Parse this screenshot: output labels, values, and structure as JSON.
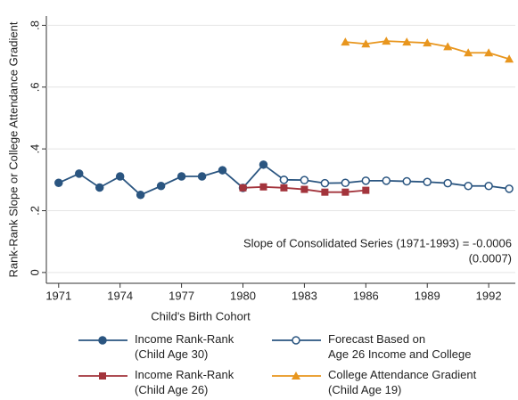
{
  "chart_data": {
    "type": "line",
    "xlabel": "Child's Birth Cohort",
    "ylabel": "Rank-Rank Slope or College Attendance Gradient",
    "x": [
      1971,
      1972,
      1973,
      1974,
      1975,
      1976,
      1977,
      1978,
      1979,
      1980,
      1981,
      1982,
      1983,
      1984,
      1985,
      1986,
      1987,
      1988,
      1989,
      1990,
      1991,
      1992,
      1993
    ],
    "xlim": [
      1970.4,
      1993.3
    ],
    "xticks": [
      1971,
      1974,
      1977,
      1980,
      1983,
      1986,
      1989,
      1992
    ],
    "ylim": [
      -0.035,
      0.83
    ],
    "yticks": [
      0,
      {
        "value": 0.2,
        "label": ".2"
      },
      {
        "value": 0.4,
        "label": ".4"
      },
      {
        "value": 0.6,
        "label": ".6"
      },
      {
        "value": 0.8,
        "label": ".8"
      }
    ],
    "series": [
      {
        "name": "Income Rank-Rank\n(Child Age 30)",
        "color": "#2a5580",
        "marker": "circle",
        "values": [
          0.29,
          0.32,
          0.275,
          0.311,
          0.251,
          0.28,
          0.311,
          0.311,
          0.331,
          0.274,
          0.349,
          0.3,
          null,
          null,
          null,
          null,
          null,
          null,
          null,
          null,
          null,
          null,
          null
        ]
      },
      {
        "name": "Forecast Based on\nAge 26 Income and College",
        "color": "#2a5580",
        "marker": "hollow-circle",
        "values": [
          null,
          null,
          null,
          null,
          null,
          null,
          null,
          null,
          null,
          null,
          null,
          0.3,
          0.299,
          0.289,
          0.29,
          0.297,
          0.297,
          0.295,
          0.293,
          0.289,
          0.28,
          0.28,
          0.271
        ]
      },
      {
        "name": "Income Rank-Rank\n(Child Age 26)",
        "color": "#a3343c",
        "marker": "square",
        "values": [
          null,
          null,
          null,
          null,
          null,
          null,
          null,
          null,
          null,
          0.274,
          0.277,
          0.274,
          0.269,
          0.26,
          0.26,
          0.266,
          null,
          null,
          null,
          null,
          null,
          null,
          null
        ]
      },
      {
        "name": "College Attendance Gradient\n(Child Age 19)",
        "color": "#e8961e",
        "marker": "triangle",
        "values": [
          null,
          null,
          null,
          null,
          null,
          null,
          null,
          null,
          null,
          null,
          null,
          null,
          null,
          null,
          0.746,
          0.74,
          0.749,
          0.746,
          0.743,
          0.731,
          0.711,
          0.711,
          0.691
        ]
      }
    ],
    "annotations": [
      "Slope of Consolidated Series (1971-1993) = -0.0006",
      "(0.0007)"
    ]
  }
}
